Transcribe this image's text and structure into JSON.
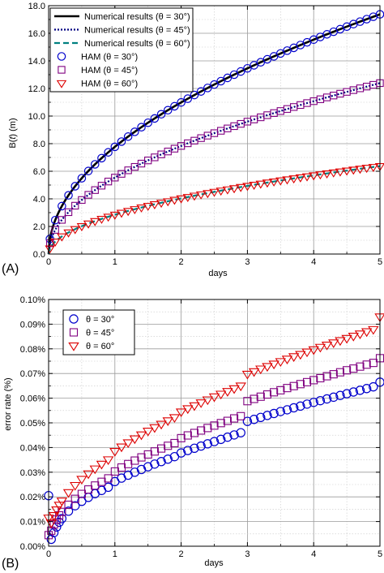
{
  "chart_data": [
    {
      "type": "line",
      "panel_label": "(A)",
      "xlabel": "days",
      "ylabel_prefix": "B(",
      "ylabel_var": "t",
      "ylabel_suffix": ") (m)",
      "xlim": [
        0,
        5
      ],
      "ylim": [
        0,
        18
      ],
      "x_ticks": [
        0,
        1,
        2,
        3,
        4,
        5
      ],
      "x_tick_labels": [
        "0",
        "1",
        "2",
        "3",
        "4",
        "5"
      ],
      "y_ticks": [
        0,
        2,
        4,
        6,
        8,
        10,
        12,
        14,
        16,
        18
      ],
      "y_tick_labels": [
        "0.0",
        "2.0",
        "4.0",
        "6.0",
        "8.0",
        "10.0",
        "12.0",
        "14.0",
        "16.0",
        "18.0"
      ],
      "grid": true,
      "legend_position": "top-left",
      "model": "power",
      "series": [
        {
          "name": "Numerical results (θ = 30°)",
          "kind": "line",
          "style": "solid",
          "color": "#000000",
          "coef": 7.77,
          "exponent": 0.5
        },
        {
          "name": "Numerical results (θ = 45°)",
          "kind": "line",
          "style": "dotted",
          "color": "#000080",
          "coef": 5.54,
          "exponent": 0.5
        },
        {
          "name": "Numerical results (θ = 60°)",
          "kind": "line",
          "style": "dashed",
          "color": "#008080",
          "coef": 2.85,
          "exponent": 0.5
        },
        {
          "name": "HAM (θ = 30°)",
          "kind": "marker",
          "marker": "circle",
          "color": "#0000CC",
          "coef": 7.77,
          "exponent": 0.5,
          "step": 0.1
        },
        {
          "name": "HAM (θ = 45°)",
          "kind": "marker",
          "marker": "square",
          "color": "#800080",
          "coef": 5.54,
          "exponent": 0.5,
          "step": 0.1
        },
        {
          "name": "HAM (θ = 60°)",
          "kind": "marker",
          "marker": "triangle-down",
          "color": "#DD0000",
          "coef": 2.85,
          "exponent": 0.5,
          "step": 0.1
        }
      ]
    },
    {
      "type": "scatter",
      "panel_label": "(B)",
      "xlabel": "days",
      "ylabel": "error rate (%)",
      "xlim": [
        0,
        5
      ],
      "ylim": [
        0,
        0.1
      ],
      "x_ticks": [
        0,
        1,
        2,
        3,
        4,
        5
      ],
      "x_tick_labels": [
        "0",
        "1",
        "2",
        "3",
        "4",
        "5"
      ],
      "y_ticks": [
        0,
        0.01,
        0.02,
        0.03,
        0.04,
        0.05,
        0.06,
        0.07,
        0.08,
        0.09,
        0.1
      ],
      "y_tick_labels": [
        "0.00%",
        "0.01%",
        "0.02%",
        "0.03%",
        "0.04%",
        "0.05%",
        "0.06%",
        "0.07%",
        "0.08%",
        "0.09%",
        "0.10%"
      ],
      "grid": true,
      "legend_position": "top-left",
      "series": [
        {
          "name": "θ = 30°",
          "marker": "circle",
          "color": "#0000CC",
          "x": [
            0,
            0.04,
            0.08,
            0.12,
            0.16,
            0.2,
            0.3,
            0.4,
            0.5,
            0.6,
            0.7,
            0.8,
            0.9,
            1.0,
            1.1,
            1.2,
            1.3,
            1.4,
            1.5,
            1.6,
            1.7,
            1.8,
            1.9,
            2.0,
            2.1,
            2.2,
            2.3,
            2.4,
            2.5,
            2.6,
            2.7,
            2.8,
            2.9,
            3.0,
            3.1,
            3.2,
            3.3,
            3.4,
            3.5,
            3.6,
            3.7,
            3.8,
            3.9,
            4.0,
            4.1,
            4.2,
            4.3,
            4.4,
            4.5,
            4.6,
            4.7,
            4.8,
            4.9,
            5.0
          ],
          "y": [
            0.0205,
            0.0028,
            0.0055,
            0.0078,
            0.0097,
            0.0112,
            0.0142,
            0.0164,
            0.0182,
            0.0198,
            0.0213,
            0.0226,
            0.0239,
            0.0262,
            0.0276,
            0.0288,
            0.03,
            0.0311,
            0.0322,
            0.0333,
            0.0343,
            0.0353,
            0.0363,
            0.0378,
            0.0388,
            0.0397,
            0.0406,
            0.0415,
            0.0424,
            0.0433,
            0.0442,
            0.0451,
            0.046,
            0.0506,
            0.0514,
            0.0522,
            0.053,
            0.0538,
            0.0546,
            0.0553,
            0.0561,
            0.0568,
            0.0576,
            0.0583,
            0.059,
            0.0597,
            0.0604,
            0.0611,
            0.0618,
            0.0625,
            0.0632,
            0.0639,
            0.0646,
            0.0665
          ]
        },
        {
          "name": "θ = 45°",
          "marker": "square",
          "color": "#800080",
          "x": [
            0,
            0.04,
            0.08,
            0.12,
            0.16,
            0.2,
            0.3,
            0.4,
            0.5,
            0.6,
            0.7,
            0.8,
            0.9,
            1.0,
            1.1,
            1.2,
            1.3,
            1.4,
            1.5,
            1.6,
            1.7,
            1.8,
            1.9,
            2.0,
            2.1,
            2.2,
            2.3,
            2.4,
            2.5,
            2.6,
            2.7,
            2.8,
            2.9,
            3.0,
            3.1,
            3.2,
            3.3,
            3.4,
            3.5,
            3.6,
            3.7,
            3.8,
            3.9,
            4.0,
            4.1,
            4.2,
            4.3,
            4.4,
            4.5,
            4.6,
            4.7,
            4.8,
            4.9,
            5.0
          ],
          "y": [
            0.0045,
            0.0063,
            0.0088,
            0.0108,
            0.0125,
            0.0139,
            0.0168,
            0.0192,
            0.0212,
            0.023,
            0.0246,
            0.0261,
            0.0275,
            0.0303,
            0.0319,
            0.0333,
            0.0347,
            0.036,
            0.0372,
            0.0384,
            0.0396,
            0.0407,
            0.0418,
            0.0438,
            0.0449,
            0.0459,
            0.0469,
            0.0479,
            0.0489,
            0.0499,
            0.0508,
            0.0518,
            0.0527,
            0.0588,
            0.0597,
            0.0606,
            0.0615,
            0.0624,
            0.0632,
            0.0641,
            0.0649,
            0.0657,
            0.0665,
            0.0673,
            0.0681,
            0.0689,
            0.0697,
            0.0705,
            0.0713,
            0.072,
            0.0728,
            0.0736,
            0.0743,
            0.0762
          ]
        },
        {
          "name": "θ = 60°",
          "marker": "triangle-down",
          "color": "#DD0000",
          "x": [
            0,
            0.04,
            0.08,
            0.12,
            0.16,
            0.2,
            0.3,
            0.4,
            0.5,
            0.6,
            0.7,
            0.8,
            0.9,
            1.0,
            1.1,
            1.2,
            1.3,
            1.4,
            1.5,
            1.6,
            1.7,
            1.8,
            1.9,
            2.0,
            2.1,
            2.2,
            2.3,
            2.4,
            2.5,
            2.6,
            2.7,
            2.8,
            2.9,
            3.0,
            3.1,
            3.2,
            3.3,
            3.4,
            3.5,
            3.6,
            3.7,
            3.8,
            3.9,
            4.0,
            4.1,
            4.2,
            4.3,
            4.4,
            4.5,
            4.6,
            4.7,
            4.8,
            4.9,
            5.0
          ],
          "y": [
            0.0115,
            0.0095,
            0.0125,
            0.0148,
            0.0167,
            0.0184,
            0.0218,
            0.0247,
            0.0272,
            0.0294,
            0.0314,
            0.0333,
            0.0351,
            0.0385,
            0.0403,
            0.042,
            0.0436,
            0.0452,
            0.0467,
            0.0481,
            0.0495,
            0.0509,
            0.0522,
            0.0545,
            0.0558,
            0.057,
            0.0582,
            0.0594,
            0.0606,
            0.0617,
            0.0628,
            0.0639,
            0.065,
            0.0698,
            0.0708,
            0.0719,
            0.0729,
            0.0739,
            0.0749,
            0.0759,
            0.0769,
            0.0778,
            0.0788,
            0.0797,
            0.0807,
            0.0816,
            0.0825,
            0.0834,
            0.0843,
            0.0852,
            0.0861,
            0.087,
            0.0879,
            0.093
          ]
        }
      ]
    }
  ]
}
